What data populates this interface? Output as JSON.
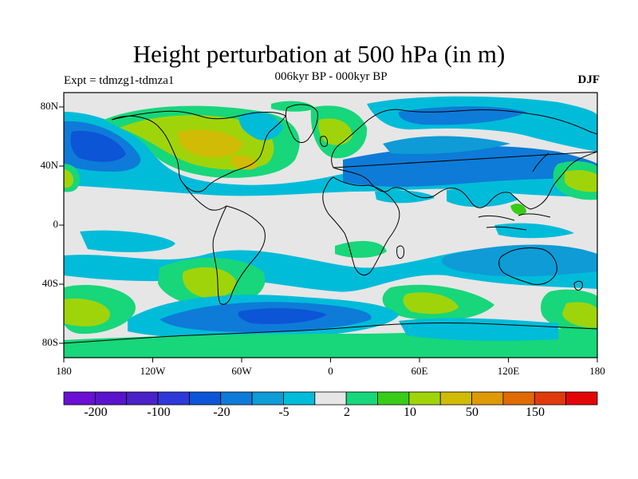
{
  "title": "Height perturbation at 500 hPa (in m)",
  "left_label": "Expt = tdmzg1-tdmza1",
  "center_label": "006kyr BP - 000kyr BP",
  "right_label": "DJF",
  "lat_ticks": [
    "80N",
    "40N",
    "0",
    "40S",
    "80S"
  ],
  "lon_ticks": [
    "180",
    "120W",
    "60W",
    "0",
    "60E",
    "120E",
    "180"
  ],
  "colorbar": {
    "colors": [
      "#6b0fd4",
      "#5a14cc",
      "#4a22c8",
      "#2f38d8",
      "#0c55d6",
      "#0e7bd8",
      "#0e9bd6",
      "#00bcd9",
      "#e6e6e6",
      "#18d67a",
      "#38cc18",
      "#a0d40a",
      "#d0bc06",
      "#de9a06",
      "#e06a04",
      "#e03a0c",
      "#e40606"
    ],
    "labels": [
      "-200",
      "-100",
      "-20",
      "-5",
      "2",
      "10",
      "50",
      "150"
    ]
  },
  "field": {
    "background": "#e6e6e6",
    "palette": {
      "lightblue": "#00bcd9",
      "midblue": "#0e9bd6",
      "blue": "#0e7bd8",
      "darkblue": "#0c55d6",
      "green": "#18d67a",
      "lime": "#a0d40a",
      "yellow": "#d0bc06",
      "brightgreen": "#38cc18"
    }
  }
}
